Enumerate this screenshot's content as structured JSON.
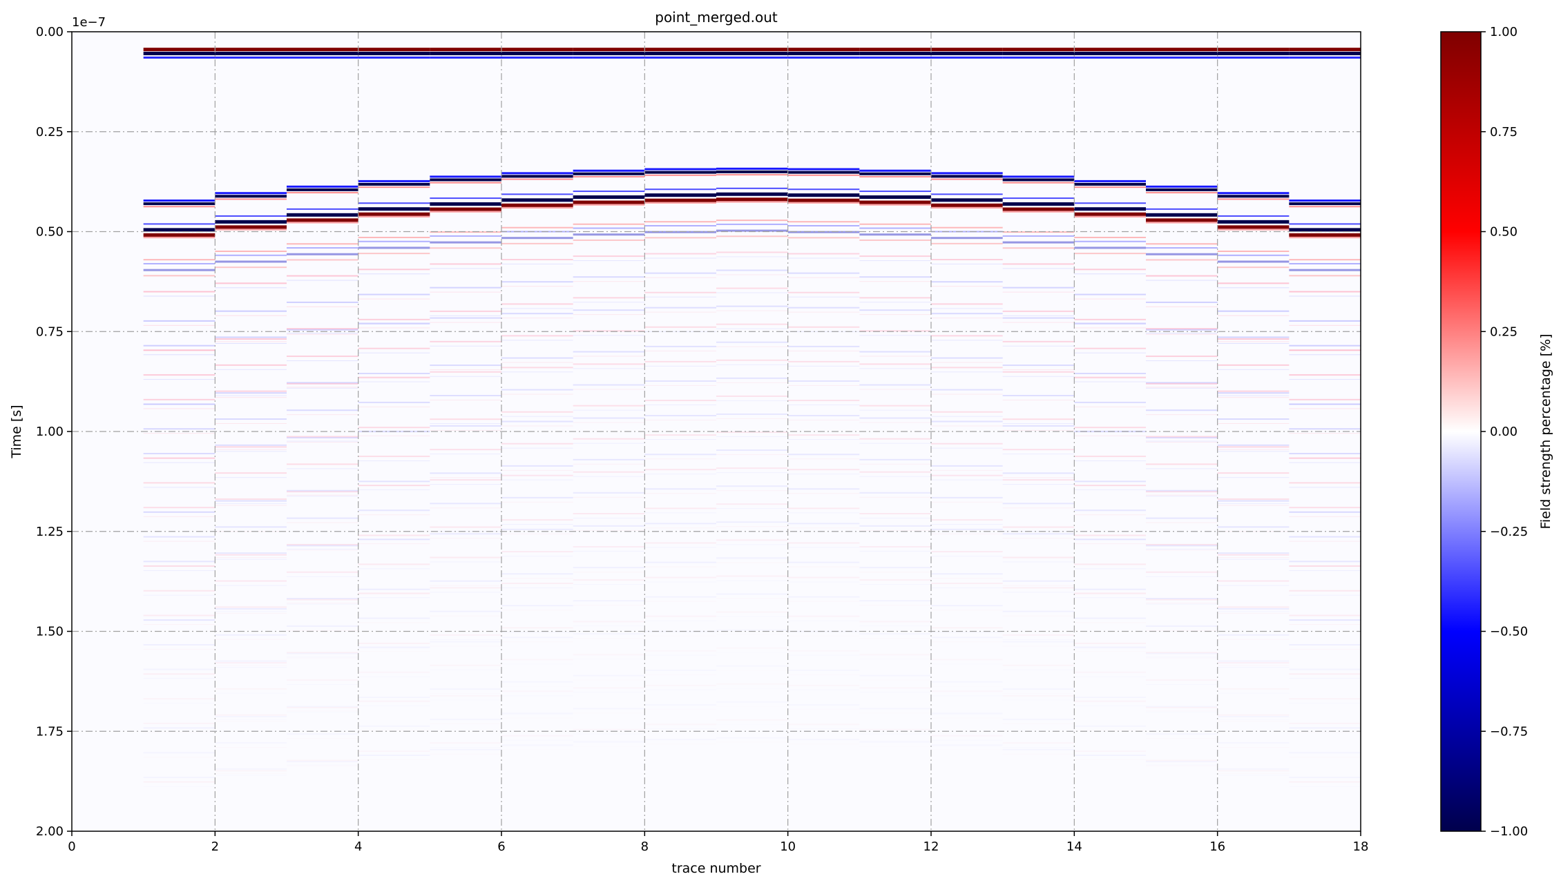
{
  "chart_data": {
    "type": "heatmap",
    "title": "point_merged.out",
    "xlabel": "trace number",
    "ylabel": "Time [s]",
    "y_offset_label": "1e−7",
    "xlim": [
      0,
      18
    ],
    "ylim": [
      2.0,
      0.0
    ],
    "y_inverted": true,
    "x_ticks": [
      0,
      2,
      4,
      6,
      8,
      10,
      12,
      14,
      16,
      18
    ],
    "y_ticks": [
      "0.00",
      "0.25",
      "0.50",
      "0.75",
      "1.00",
      "1.25",
      "1.50",
      "1.75",
      "2.00"
    ],
    "grid": "dash-dot, on x and y major ticks",
    "colormap": "seismic",
    "colorbar": {
      "label": "Field strength percentage [%]",
      "range": [
        -1.0,
        1.0
      ],
      "ticks": [
        "1.00",
        "0.75",
        "0.50",
        "0.25",
        "0.00",
        "−0.25",
        "−0.50",
        "−0.75",
        "−1.00"
      ],
      "colors": [
        "#00004c",
        "#0000ff",
        "#ffffff",
        "#ff0000",
        "#7f0000"
      ]
    },
    "traces": {
      "first_trace": 1,
      "last_trace": 17,
      "direct_wave_time": 0.05,
      "reflection_apex_trace": 9.5,
      "reflection_apex_time": 0.34,
      "reflection_edge_time": 0.43,
      "note_units": "time in units of 1e-7 s"
    }
  }
}
